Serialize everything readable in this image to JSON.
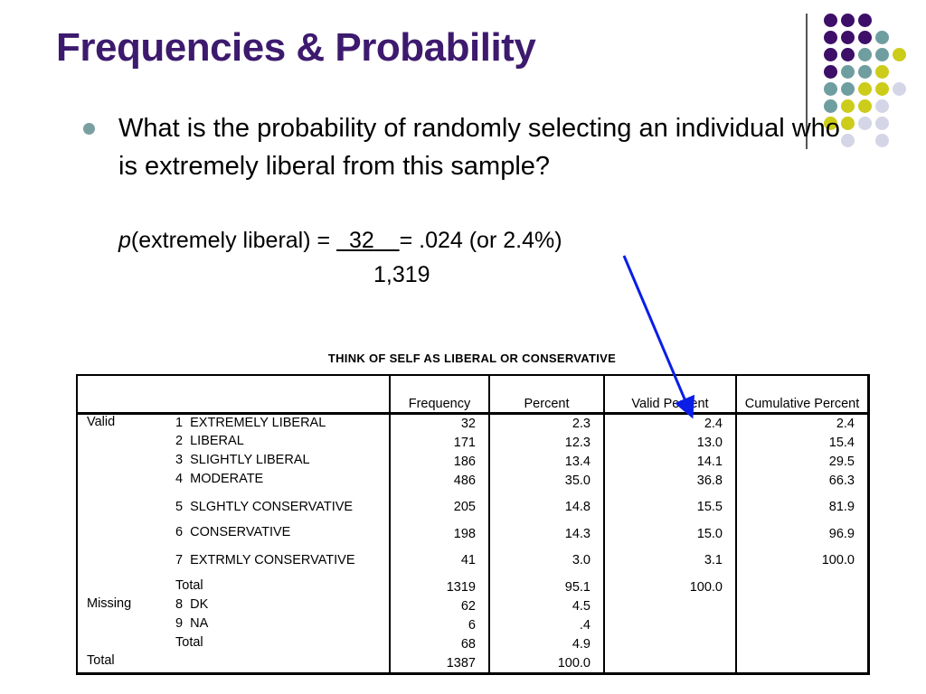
{
  "title": "Frequencies & Probability",
  "question": "What is the probability of randomly selecting an individual who is extremely liberal from this sample?",
  "formula": {
    "p": "p",
    "lhs": "(extremely liberal) = ",
    "numerator": "32",
    "rhs": "= .024 (or 2.4%)",
    "denominator": "1,319"
  },
  "colors": {
    "title": "#3d1a6e",
    "purple": "#3d0f68",
    "teal": "#6f9ea0",
    "yellow": "#cccc1a",
    "lavender": "#d5d5e8",
    "arrow": "#0a1ee8"
  },
  "table": {
    "title": "THINK OF SELF AS LIBERAL OR CONSERVATIVE",
    "headers": [
      "",
      "",
      "Frequency",
      "Percent",
      "Valid Percent",
      "Cumulative Percent"
    ],
    "rows": [
      [
        "Valid",
        "1  EXTREMELY LIBERAL",
        "32",
        "2.3",
        "2.4",
        "2.4"
      ],
      [
        "",
        "2  LIBERAL",
        "171",
        "12.3",
        "13.0",
        "15.4"
      ],
      [
        "",
        "3  SLIGHTLY LIBERAL",
        "186",
        "13.4",
        "14.1",
        "29.5"
      ],
      [
        "",
        "4  MODERATE",
        "486",
        "35.0",
        "36.8",
        "66.3"
      ],
      [
        "",
        "5  SLGHTLY CONSERVATIVE",
        "205",
        "14.8",
        "15.5",
        "81.9"
      ],
      [
        "",
        "6  CONSERVATIVE",
        "198",
        "14.3",
        "15.0",
        "96.9"
      ],
      [
        "",
        "7  EXTRMLY CONSERVATIVE",
        "41",
        "3.0",
        "3.1",
        "100.0"
      ],
      [
        "",
        "Total",
        "1319",
        "95.1",
        "100.0",
        ""
      ],
      [
        "Missing",
        "8  DK",
        "62",
        "4.5",
        "",
        ""
      ],
      [
        "",
        "9  NA",
        "6",
        ".4",
        "",
        ""
      ],
      [
        "",
        "Total",
        "68",
        "4.9",
        "",
        ""
      ],
      [
        "Total",
        "",
        "1387",
        "100.0",
        "",
        ""
      ]
    ]
  }
}
